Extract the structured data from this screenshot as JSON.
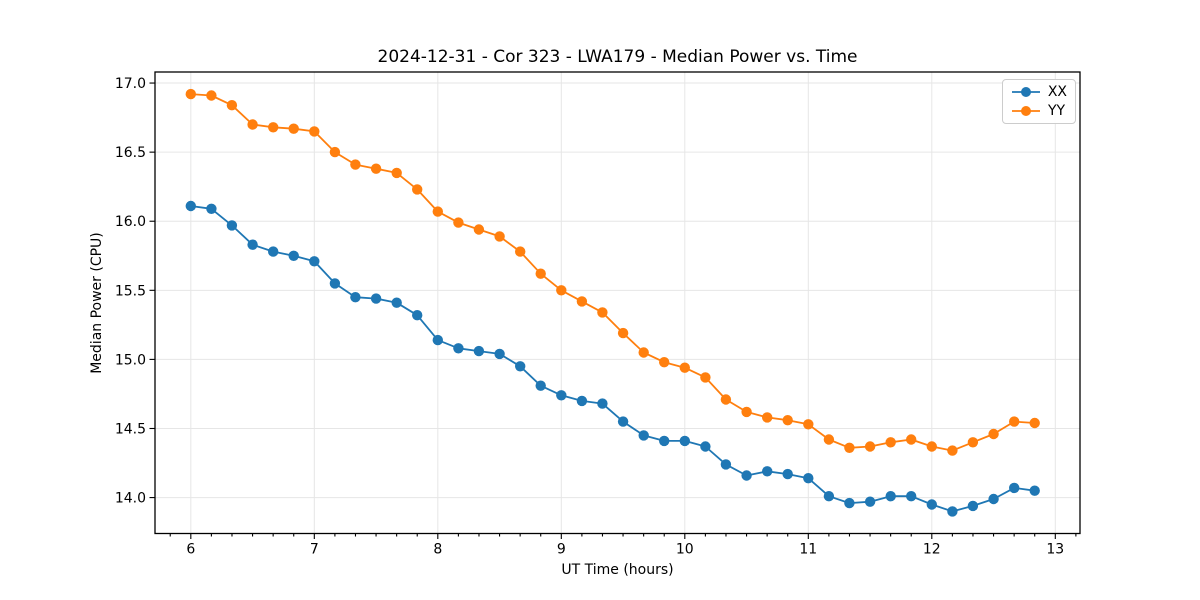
{
  "figure": {
    "title": "2024-12-31 - Cor 323 - LWA179 - Median Power vs. Time",
    "xlabel": "UT Time (hours)",
    "ylabel": "Median Power (CPU)"
  },
  "chart_data": {
    "type": "line",
    "title": "2024-12-31 - Cor 323 - LWA179 - Median Power vs. Time",
    "xlabel": "UT Time (hours)",
    "ylabel": "Median Power (CPU)",
    "xlim": [
      5.71,
      13.2
    ],
    "ylim": [
      13.74,
      17.08
    ],
    "x_ticks": [
      6,
      7,
      8,
      9,
      10,
      11,
      12,
      13
    ],
    "x_tick_labels": [
      "6",
      "7",
      "8",
      "9",
      "10",
      "11",
      "12",
      "13"
    ],
    "y_ticks": [
      17.0,
      16.5,
      16.0,
      15.5,
      15.0,
      14.5,
      14.0
    ],
    "y_tick_labels": [
      "17.0",
      "16.5",
      "16.0",
      "15.5",
      "15.0",
      "14.5",
      "14.0"
    ],
    "x_minor_step_hours": 0.1667,
    "grid": true,
    "grid_color": "#e6e6e6",
    "legend_position": "upper right",
    "x": [
      6.0,
      6.167,
      6.333,
      6.5,
      6.667,
      6.833,
      7.0,
      7.167,
      7.333,
      7.5,
      7.667,
      7.833,
      8.0,
      8.167,
      8.333,
      8.5,
      8.667,
      8.833,
      9.0,
      9.167,
      9.333,
      9.5,
      9.667,
      9.833,
      10.0,
      10.167,
      10.333,
      10.5,
      10.667,
      10.833,
      11.0,
      11.167,
      11.333,
      11.5,
      11.667,
      11.833,
      12.0,
      12.167,
      12.333,
      12.5,
      12.667,
      12.833
    ],
    "series": [
      {
        "name": "XX",
        "color": "#1f77b4",
        "values": [
          16.11,
          16.09,
          15.97,
          15.83,
          15.78,
          15.75,
          15.71,
          15.55,
          15.45,
          15.44,
          15.41,
          15.32,
          15.14,
          15.08,
          15.06,
          15.04,
          14.95,
          14.81,
          14.74,
          14.7,
          14.68,
          14.55,
          14.45,
          14.41,
          14.41,
          14.37,
          14.24,
          14.16,
          14.19,
          14.17,
          14.14,
          14.01,
          13.96,
          13.97,
          14.01,
          14.01,
          13.95,
          13.9,
          13.94,
          13.99,
          14.07,
          14.05
        ]
      },
      {
        "name": "YY",
        "color": "#ff7f0e",
        "values": [
          16.92,
          16.91,
          16.84,
          16.7,
          16.68,
          16.67,
          16.65,
          16.5,
          16.41,
          16.38,
          16.35,
          16.23,
          16.07,
          15.99,
          15.94,
          15.89,
          15.78,
          15.62,
          15.5,
          15.42,
          15.34,
          15.19,
          15.05,
          14.98,
          14.94,
          14.87,
          14.71,
          14.62,
          14.58,
          14.56,
          14.53,
          14.42,
          14.36,
          14.37,
          14.4,
          14.42,
          14.37,
          14.34,
          14.4,
          14.46,
          14.55,
          14.54
        ]
      }
    ]
  }
}
